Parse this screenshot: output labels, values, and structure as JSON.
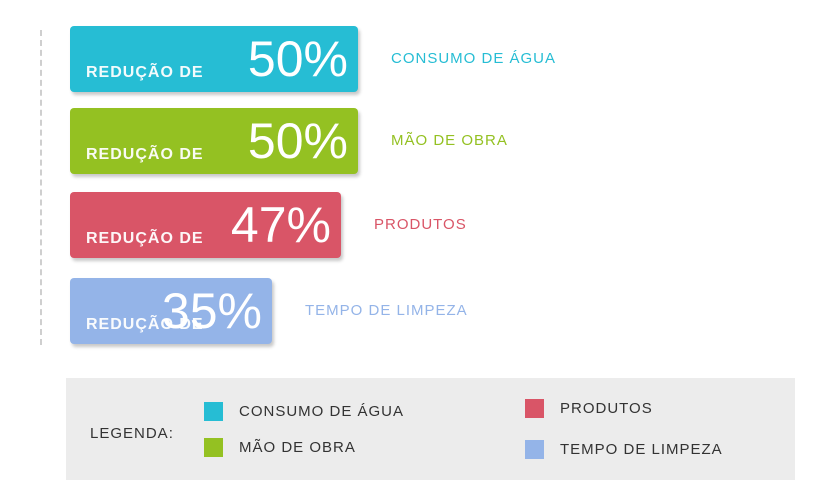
{
  "chart_data": {
    "type": "bar",
    "orientation": "horizontal",
    "categories": [
      "CONSUMO DE ÁGUA",
      "MÃO DE OBRA",
      "PRODUTOS",
      "TEMPO DE LIMPEZA"
    ],
    "values": [
      50,
      50,
      47,
      35
    ],
    "value_labels": [
      "50%",
      "50%",
      "47%",
      "35%"
    ],
    "bar_prefix": "REDUÇÃO DE",
    "colors": [
      "#26bdd4",
      "#94c122",
      "#d95567",
      "#94b4e8"
    ],
    "legend": {
      "title": "LEGENDA:",
      "entries": [
        {
          "label": "CONSUMO DE ÁGUA",
          "color": "#26bdd4"
        },
        {
          "label": "MÃO DE OBRA",
          "color": "#94c122"
        },
        {
          "label": "PRODUTOS",
          "color": "#d95567"
        },
        {
          "label": "TEMPO DE LIMPEZA",
          "color": "#94b4e8"
        }
      ]
    }
  }
}
